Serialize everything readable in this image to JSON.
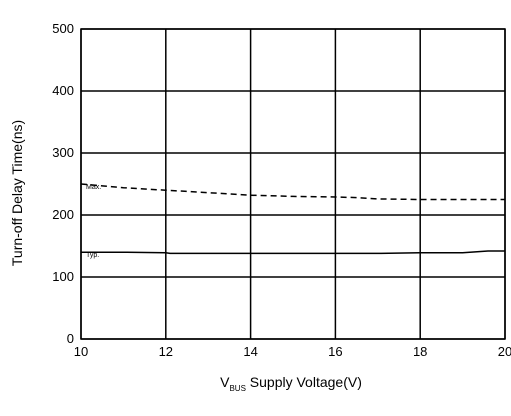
{
  "chart_data": {
    "type": "line",
    "title": "",
    "xlabel": {
      "prefix": "V",
      "subscript": "BUS",
      "rest": " Supply Voltage(V)"
    },
    "ylabel": "Turn-off Delay Time(ns)",
    "xlim": [
      10,
      20
    ],
    "ylim": [
      0,
      500
    ],
    "x_ticks": [
      10,
      12,
      14,
      16,
      18,
      20
    ],
    "y_ticks": [
      0,
      100,
      200,
      300,
      400,
      500
    ],
    "grid": true,
    "series": [
      {
        "name": "Max.",
        "style": "dashed",
        "color": "#000000",
        "x": [
          10,
          10.5,
          11,
          11.5,
          12,
          12.5,
          13,
          13.5,
          14,
          15,
          16,
          16.5,
          17,
          18,
          19,
          20
        ],
        "y": [
          250,
          247,
          244,
          242,
          240,
          238,
          236,
          234,
          232,
          230,
          229,
          228,
          226,
          225,
          225,
          225
        ]
      },
      {
        "name": "Typ.",
        "style": "solid",
        "color": "#000000",
        "x": [
          10,
          11,
          12,
          12.1,
          13,
          14,
          15,
          16,
          17,
          18,
          19,
          19.6,
          20
        ],
        "y": [
          140,
          140,
          139,
          138,
          138,
          138,
          138,
          138,
          138,
          139,
          139,
          142,
          142
        ]
      }
    ]
  }
}
